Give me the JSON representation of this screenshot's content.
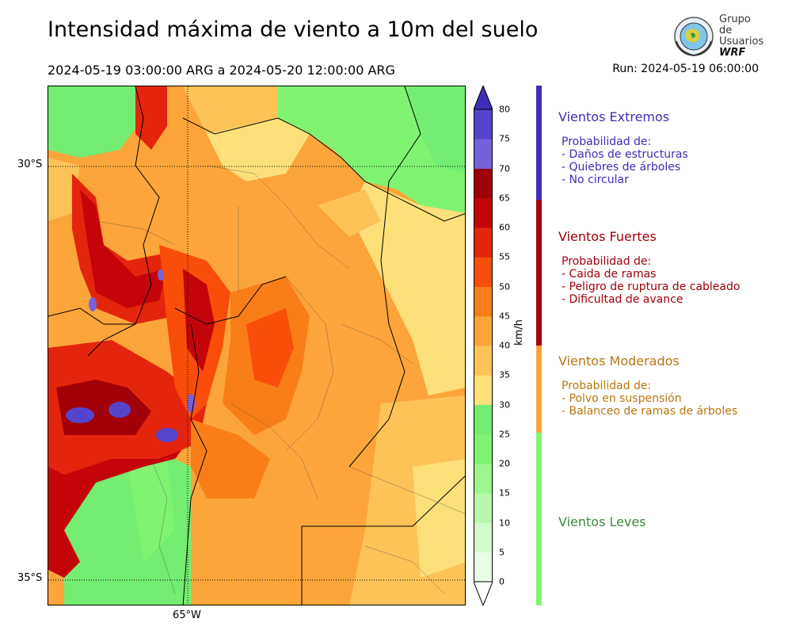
{
  "header": {
    "title": "Intensidad máxima de viento a 10m del suelo",
    "period": "2024-05-19 03:00:00 ARG  a  2024-05-20 12:00:00 ARG",
    "run": "Run: 2024-05-19 06:00:00"
  },
  "logo": {
    "line1": "Grupo de",
    "line2": "Usuarios",
    "line3": "WRF"
  },
  "map": {
    "lat_labels": [
      "30°S",
      "35°S"
    ],
    "lon_labels": [
      "65°W"
    ]
  },
  "colorbar": {
    "unit": "km/h",
    "ticks": [
      "0",
      "5",
      "10",
      "15",
      "20",
      "25",
      "30",
      "35",
      "40",
      "45",
      "50",
      "55",
      "60",
      "65",
      "70",
      "75",
      "80"
    ],
    "colors": [
      "#e9fde6",
      "#d2fbcc",
      "#b7f8ac",
      "#9cf58e",
      "#80f372",
      "#74ed72",
      "#fde07a",
      "#fdc357",
      "#fca53a",
      "#fa7e17",
      "#f94e0a",
      "#e4250d",
      "#c3050a",
      "#a10009",
      "#7462db",
      "#5645cc",
      "#3f2db6"
    ]
  },
  "categories": [
    {
      "title": "Vientos Extremos",
      "color": "#3f2db6",
      "lines": [
        "Probabilidad de:",
        "- Daños de estructuras",
        "- Quiebres de árboles",
        "- No circular"
      ]
    },
    {
      "title": "Vientos Fuertes",
      "color": "#a10009",
      "lines": [
        "Probabilidad de:",
        "- Caida de ramas",
        "- Peligro de ruptura de cableado",
        "- Dificultad de avance"
      ]
    },
    {
      "title": "Vientos Moderados",
      "color": "#b8760f",
      "lines": [
        "Probabilidad de:",
        "- Polvo en suspensión",
        "- Balanceo de ramas de árboles"
      ]
    },
    {
      "title": "Vientos Leves",
      "color": "#3c8a3c",
      "lines": []
    }
  ]
}
